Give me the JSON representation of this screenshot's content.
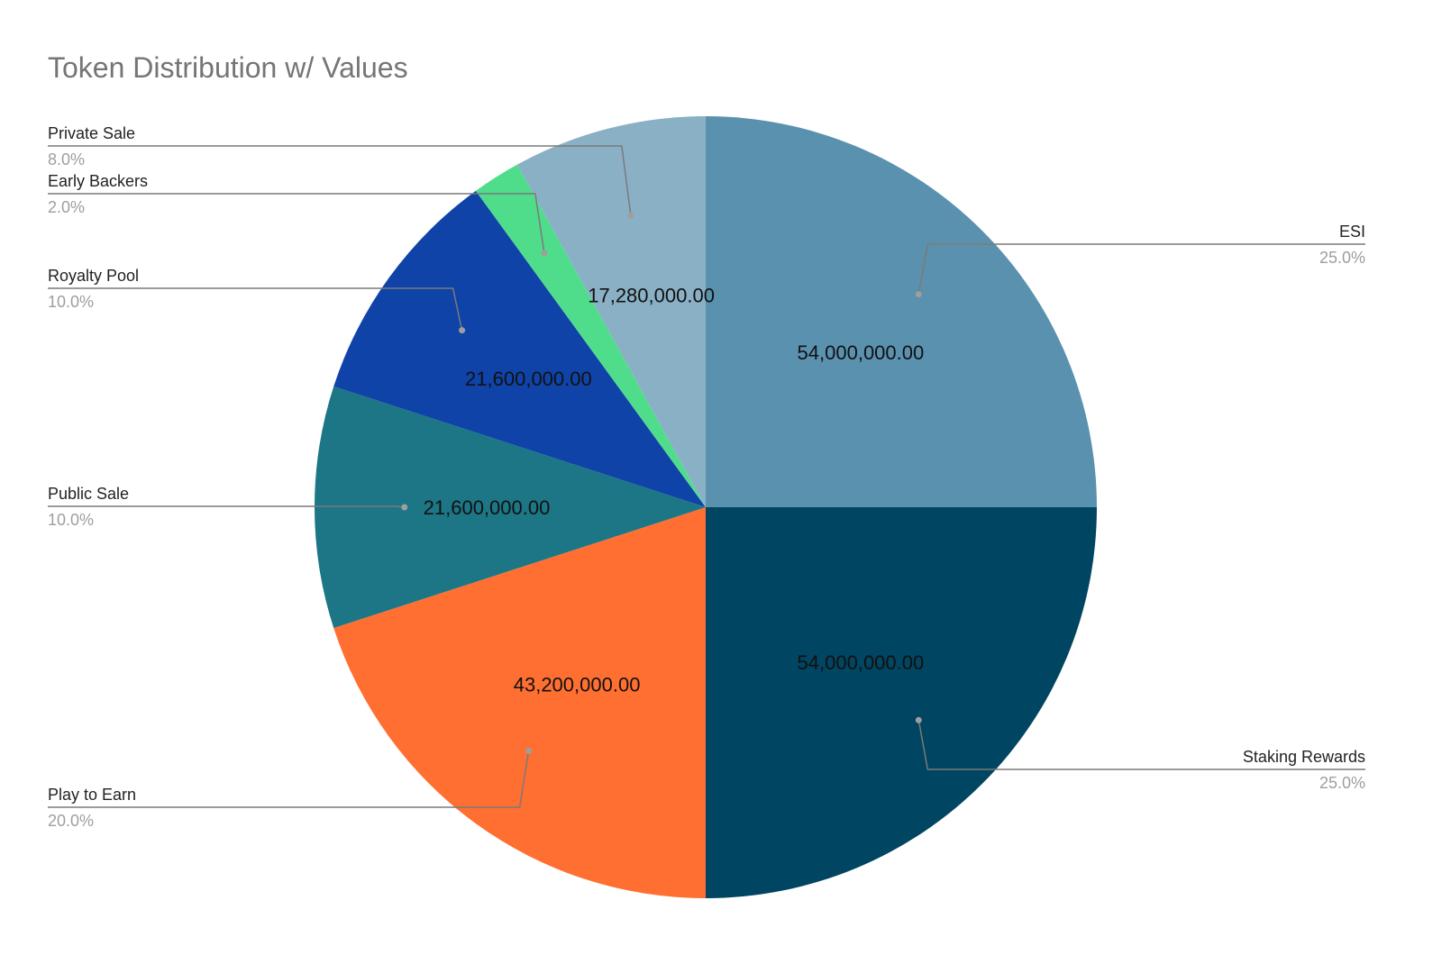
{
  "chart_data": {
    "type": "pie",
    "title": "Token Distribution w/ Values",
    "slices": [
      {
        "label": "ESI",
        "value": 54000000,
        "value_label": "54,000,000.00",
        "percent_label": "25.0%",
        "color": "#5a91ae"
      },
      {
        "label": "Staking Rewards",
        "value": 54000000,
        "value_label": "54,000,000.00",
        "percent_label": "25.0%",
        "color": "#004561"
      },
      {
        "label": "Play to Earn",
        "value": 43200000,
        "value_label": "43,200,000.00",
        "percent_label": "20.0%",
        "color": "#ff6f31"
      },
      {
        "label": "Public Sale",
        "value": 21600000,
        "value_label": "21,600,000.00",
        "percent_label": "10.0%",
        "color": "#1c7685"
      },
      {
        "label": "Royalty Pool",
        "value": 21600000,
        "value_label": "21,600,000.00",
        "percent_label": "10.0%",
        "color": "#0f43a8"
      },
      {
        "label": "Early Backers",
        "value": 4320000,
        "value_label": "",
        "percent_label": "2.0%",
        "color": "#4fdd8b"
      },
      {
        "label": "Private Sale",
        "value": 17280000,
        "value_label": "17,280,000.00",
        "percent_label": "8.0%",
        "color": "#8ab0c6"
      }
    ],
    "start_angle": "12 o'clock",
    "direction": "clockwise",
    "legend": "none (labeled leader lines)"
  }
}
